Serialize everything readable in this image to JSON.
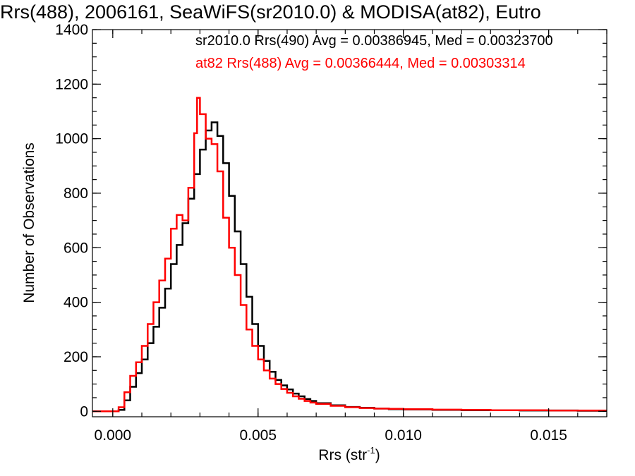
{
  "chart_data": {
    "type": "line",
    "title": "Rrs(488), 2006161, SeaWiFS(sr2010.0) & MODISA(at82), Eutro",
    "xlabel": "Rrs (str",
    "xlabel_sup": "-1",
    "xlabel_close": ")",
    "ylabel": "Number of Observations",
    "xlim": [
      -0.0007,
      0.017
    ],
    "ylim": [
      -20,
      1400
    ],
    "x_ticks": [
      0.0,
      0.005,
      0.01,
      0.015
    ],
    "x_tick_labels": [
      "0.000",
      "0.005",
      "0.010",
      "0.015"
    ],
    "y_ticks": [
      0,
      200,
      400,
      600,
      800,
      1000,
      1200,
      1400
    ],
    "y_tick_labels": [
      "0",
      "200",
      "400",
      "600",
      "800",
      "1000",
      "1200",
      "1400"
    ],
    "grid": false,
    "step": true,
    "annotations": [
      {
        "text": "sr2010.0 Rrs(490) Avg = 0.00386945, Med = 0.00323700",
        "color": "#000000"
      },
      {
        "text": "at82 Rrs(488) Avg = 0.00366444, Med = 0.00303314",
        "color": "#ff0000"
      }
    ],
    "series": [
      {
        "color": "#000000",
        "points": [
          [
            -0.0007,
            0
          ],
          [
            0.0,
            0
          ],
          [
            0.0002,
            5
          ],
          [
            0.0004,
            40
          ],
          [
            0.0006,
            90
          ],
          [
            0.0008,
            140
          ],
          [
            0.001,
            190
          ],
          [
            0.0012,
            250
          ],
          [
            0.0014,
            310
          ],
          [
            0.0016,
            380
          ],
          [
            0.0018,
            450
          ],
          [
            0.002,
            540
          ],
          [
            0.0022,
            610
          ],
          [
            0.0024,
            690
          ],
          [
            0.0026,
            780
          ],
          [
            0.0028,
            870
          ],
          [
            0.003,
            960
          ],
          [
            0.0032,
            1030
          ],
          [
            0.0034,
            1060
          ],
          [
            0.0036,
            1010
          ],
          [
            0.0038,
            910
          ],
          [
            0.004,
            790
          ],
          [
            0.0042,
            660
          ],
          [
            0.0044,
            540
          ],
          [
            0.0046,
            420
          ],
          [
            0.0048,
            320
          ],
          [
            0.005,
            240
          ],
          [
            0.0052,
            185
          ],
          [
            0.0054,
            145
          ],
          [
            0.0056,
            115
          ],
          [
            0.0058,
            95
          ],
          [
            0.006,
            80
          ],
          [
            0.0062,
            65
          ],
          [
            0.0064,
            55
          ],
          [
            0.0066,
            45
          ],
          [
            0.0068,
            38
          ],
          [
            0.007,
            30
          ],
          [
            0.0075,
            22
          ],
          [
            0.008,
            16
          ],
          [
            0.0085,
            13
          ],
          [
            0.009,
            10
          ],
          [
            0.0095,
            8
          ],
          [
            0.01,
            7
          ],
          [
            0.011,
            5
          ],
          [
            0.012,
            4
          ],
          [
            0.013,
            4
          ],
          [
            0.014,
            3
          ],
          [
            0.015,
            3
          ],
          [
            0.016,
            2
          ],
          [
            0.017,
            2
          ]
        ]
      },
      {
        "color": "#ff0000",
        "points": [
          [
            -0.0007,
            0
          ],
          [
            0.0,
            0
          ],
          [
            0.0002,
            15
          ],
          [
            0.0004,
            70
          ],
          [
            0.0006,
            130
          ],
          [
            0.0008,
            180
          ],
          [
            0.001,
            240
          ],
          [
            0.0012,
            320
          ],
          [
            0.0014,
            400
          ],
          [
            0.0016,
            480
          ],
          [
            0.0018,
            560
          ],
          [
            0.002,
            670
          ],
          [
            0.0022,
            720
          ],
          [
            0.0024,
            700
          ],
          [
            0.0026,
            820
          ],
          [
            0.0028,
            1020
          ],
          [
            0.0029,
            1150
          ],
          [
            0.003,
            1090
          ],
          [
            0.0032,
            1000
          ],
          [
            0.0034,
            980
          ],
          [
            0.0036,
            880
          ],
          [
            0.0038,
            710
          ],
          [
            0.004,
            600
          ],
          [
            0.0042,
            500
          ],
          [
            0.0044,
            390
          ],
          [
            0.0046,
            300
          ],
          [
            0.0048,
            240
          ],
          [
            0.005,
            190
          ],
          [
            0.0052,
            150
          ],
          [
            0.0054,
            120
          ],
          [
            0.0056,
            100
          ],
          [
            0.0058,
            82
          ],
          [
            0.006,
            68
          ],
          [
            0.0062,
            55
          ],
          [
            0.0064,
            46
          ],
          [
            0.0066,
            38
          ],
          [
            0.0068,
            32
          ],
          [
            0.007,
            27
          ],
          [
            0.0075,
            20
          ],
          [
            0.008,
            15
          ],
          [
            0.0085,
            12
          ],
          [
            0.009,
            10
          ],
          [
            0.0095,
            9
          ],
          [
            0.01,
            8
          ],
          [
            0.011,
            6
          ],
          [
            0.012,
            5
          ],
          [
            0.013,
            4
          ],
          [
            0.014,
            4
          ],
          [
            0.015,
            3
          ],
          [
            0.016,
            3
          ],
          [
            0.017,
            3
          ]
        ]
      }
    ]
  }
}
